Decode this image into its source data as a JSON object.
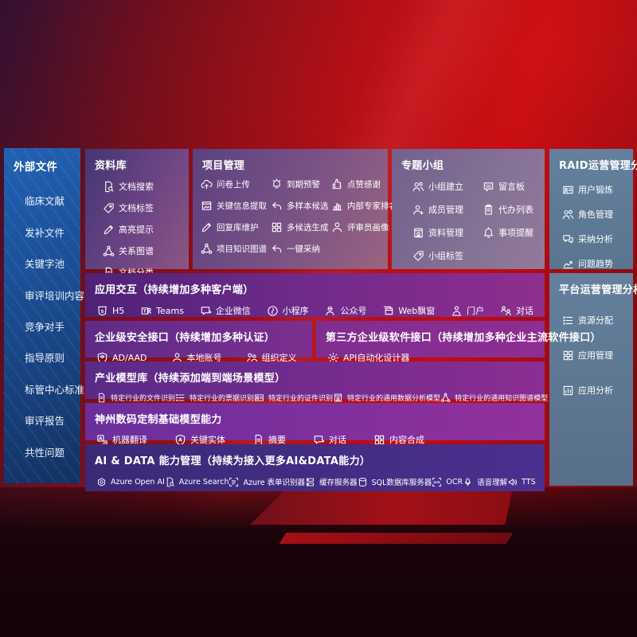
{
  "colors": {
    "accent_red": "#c10c11",
    "sidebar_blue": "#1c55a4",
    "panel_purple": "#6e2a8a",
    "slate_panel": "#5f7b95",
    "indigo_row": "#3a2a76"
  },
  "panels": {
    "external_files": {
      "title": "外部文件",
      "items": [
        {
          "label": "临床文献"
        },
        {
          "label": "发补文件"
        },
        {
          "label": "关键字池"
        },
        {
          "label": "审评培训内容"
        },
        {
          "label": "竞争对手"
        },
        {
          "label": "指导原则"
        },
        {
          "label": "标管中心标准"
        },
        {
          "label": "审评报告"
        },
        {
          "label": "共性问题"
        }
      ]
    },
    "repository": {
      "title": "资料库",
      "items": [
        {
          "icon": "docsearch",
          "label": "文档搜索"
        },
        {
          "icon": "tag",
          "label": "文档标签"
        },
        {
          "icon": "pencil",
          "label": "高亮提示"
        },
        {
          "icon": "graph",
          "label": "关系图谱"
        },
        {
          "icon": "doc",
          "label": "文档分类"
        }
      ]
    },
    "project_mgmt": {
      "title": "项目管理",
      "items": [
        {
          "icon": "cloudup",
          "label": "问卷上传"
        },
        {
          "icon": "alarm",
          "label": "到期预警"
        },
        {
          "icon": "thumb",
          "label": "点赞感谢"
        },
        {
          "icon": "docimg",
          "label": "关键信息提取"
        },
        {
          "icon": "reply",
          "label": "多样本候选"
        },
        {
          "icon": "rank",
          "label": "内部专家排名"
        },
        {
          "icon": "pencil",
          "label": "回复库维护"
        },
        {
          "icon": "grid",
          "label": "多候选生成"
        },
        {
          "icon": "person",
          "label": "评审员画像"
        },
        {
          "icon": "graph",
          "label": "项目知识图谱"
        },
        {
          "icon": "reply",
          "label": "一键采纳"
        }
      ]
    },
    "topic_groups": {
      "title": "专题小组",
      "items": [
        {
          "icon": "persons",
          "label": "小组建立"
        },
        {
          "icon": "bbs",
          "label": "留言板"
        },
        {
          "icon": "personplus",
          "label": "成员管理"
        },
        {
          "icon": "clipboard",
          "label": "代办列表"
        },
        {
          "icon": "album",
          "label": "资料管理"
        },
        {
          "icon": "bell",
          "label": "事项提醒"
        },
        {
          "icon": "tag",
          "label": "小组标签"
        }
      ]
    },
    "raid_analysis": {
      "title": "RAID运营管理分析",
      "items": [
        {
          "icon": "card",
          "label": "用户锻炼"
        },
        {
          "icon": "persons",
          "label": "角色管理"
        },
        {
          "icon": "qa",
          "label": "采纳分析"
        },
        {
          "icon": "trend",
          "label": "问题趋势"
        }
      ]
    },
    "platform_analysis": {
      "title": "平台运营管理分析",
      "items": [
        {
          "icon": "listicon",
          "label": "资源分配"
        },
        {
          "icon": "grid",
          "label": "应用管理"
        },
        {
          "icon": "chartcard",
          "label": "应用分析"
        }
      ]
    },
    "app_interaction": {
      "title": "应用交互（持续增加多种客户端）",
      "items": [
        {
          "icon": "h5",
          "label": "H5"
        },
        {
          "icon": "teams",
          "label": "Teams"
        },
        {
          "icon": "wechat",
          "label": "企业微信"
        },
        {
          "icon": "mini",
          "label": "小程序"
        },
        {
          "icon": "pub",
          "label": "公众号"
        },
        {
          "icon": "webwin",
          "label": "Web飘窗"
        },
        {
          "icon": "portal",
          "label": "门户"
        },
        {
          "icon": "dialog",
          "label": "对话"
        }
      ]
    },
    "security_api": {
      "title": "企业级安全接口（持续增加多种认证）",
      "items": [
        {
          "icon": "shield",
          "label": "AD/AAD"
        },
        {
          "icon": "person",
          "label": "本地账号"
        },
        {
          "icon": "org",
          "label": "组织定义"
        }
      ]
    },
    "thirdparty_api": {
      "title": "第三方企业级软件接口（持续增加多种企业主流软件接口）",
      "items": [
        {
          "icon": "gear",
          "label": "API自动化设计器"
        }
      ]
    },
    "industry_models": {
      "title": "产业模型库（持续添加端到端场景模型）",
      "items": [
        {
          "icon": "doc",
          "label": "特定行业的文件识别"
        },
        {
          "icon": "listicon",
          "label": "特定行业的票据识别"
        },
        {
          "icon": "card",
          "label": "特定行业的证件识别"
        },
        {
          "icon": "album",
          "label": "特定行业的通用数据分析模型"
        },
        {
          "icon": "graph",
          "label": "特定行业的通用知识图谱模型"
        }
      ]
    },
    "base_models": {
      "title": "神州数码定制基础模型能力",
      "items": [
        {
          "icon": "translate",
          "label": "机器翻译"
        },
        {
          "icon": "entity",
          "label": "关键实体"
        },
        {
          "icon": "doc",
          "label": "摘要"
        },
        {
          "icon": "wechat",
          "label": "对话"
        },
        {
          "icon": "grid",
          "label": "内容合成"
        }
      ]
    },
    "ai_data": {
      "title": "AI & DATA 能力管理（持续为接入更多AI&DATA能力）",
      "items": [
        {
          "icon": "openai",
          "label": "Azure Open AI"
        },
        {
          "icon": "docsearch",
          "label": "Azure Search"
        },
        {
          "icon": "formrec",
          "label": "Azure 表单识别器"
        },
        {
          "icon": "server",
          "label": "缓存服务器"
        },
        {
          "icon": "sqldb",
          "label": "SQL数据库服务器"
        },
        {
          "icon": "ocr",
          "label": "OCR"
        },
        {
          "icon": "speech",
          "label": "语音理解"
        },
        {
          "icon": "tts",
          "label": "TTS"
        }
      ]
    }
  }
}
